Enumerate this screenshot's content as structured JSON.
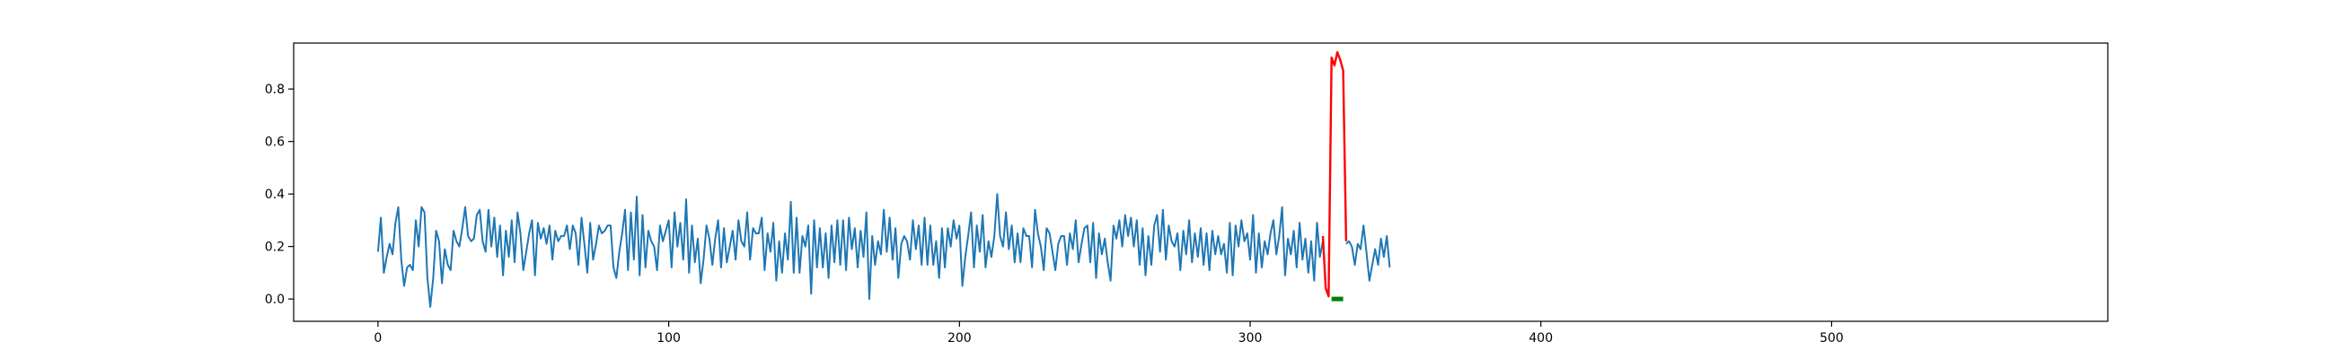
{
  "chart_data": {
    "type": "line",
    "title": "",
    "xlabel": "",
    "ylabel": "",
    "xlim": [
      -29,
      595
    ],
    "ylim": [
      -0.085,
      0.975
    ],
    "grid": false,
    "legend": "none",
    "xticks": [
      0,
      100,
      200,
      300,
      400,
      500
    ],
    "xtick_labels": [
      "0",
      "100",
      "200",
      "300",
      "400",
      "500"
    ],
    "yticks": [
      0.0,
      0.2,
      0.4,
      0.6,
      0.8
    ],
    "ytick_labels": [
      "0.0",
      "0.2",
      "0.4",
      "0.6",
      "0.8"
    ],
    "series": [
      {
        "role": "signal",
        "color": "#1f77b4",
        "x_start": 0,
        "values": [
          0.18,
          0.31,
          0.1,
          0.16,
          0.21,
          0.17,
          0.29,
          0.35,
          0.15,
          0.05,
          0.12,
          0.13,
          0.11,
          0.3,
          0.2,
          0.35,
          0.33,
          0.08,
          -0.03,
          0.08,
          0.26,
          0.22,
          0.06,
          0.19,
          0.13,
          0.11,
          0.26,
          0.22,
          0.2,
          0.27,
          0.35,
          0.24,
          0.22,
          0.23,
          0.32,
          0.34,
          0.22,
          0.18,
          0.34,
          0.2,
          0.31,
          0.16,
          0.28,
          0.09,
          0.26,
          0.16,
          0.3,
          0.14,
          0.33,
          0.25,
          0.11,
          0.18,
          0.25,
          0.3,
          0.09,
          0.29,
          0.23,
          0.27,
          0.21,
          0.28,
          0.15,
          0.26,
          0.22,
          0.24,
          0.24,
          0.28,
          0.19,
          0.28,
          0.25,
          0.13,
          0.31,
          0.21,
          0.1,
          0.29,
          0.15,
          0.21,
          0.28,
          0.25,
          0.26,
          0.28,
          0.28,
          0.12,
          0.08,
          0.18,
          0.25,
          0.34,
          0.11,
          0.33,
          0.15,
          0.39,
          0.09,
          0.32,
          0.12,
          0.26,
          0.22,
          0.2,
          0.11,
          0.28,
          0.22,
          0.26,
          0.3,
          0.12,
          0.33,
          0.2,
          0.29,
          0.15,
          0.38,
          0.1,
          0.28,
          0.14,
          0.23,
          0.06,
          0.15,
          0.28,
          0.23,
          0.13,
          0.23,
          0.3,
          0.12,
          0.27,
          0.14,
          0.2,
          0.26,
          0.15,
          0.3,
          0.22,
          0.2,
          0.33,
          0.15,
          0.27,
          0.25,
          0.25,
          0.31,
          0.11,
          0.25,
          0.18,
          0.29,
          0.07,
          0.22,
          0.1,
          0.25,
          0.15,
          0.37,
          0.1,
          0.31,
          0.1,
          0.24,
          0.2,
          0.28,
          0.02,
          0.3,
          0.12,
          0.27,
          0.12,
          0.25,
          0.08,
          0.28,
          0.14,
          0.3,
          0.13,
          0.3,
          0.11,
          0.31,
          0.19,
          0.27,
          0.12,
          0.26,
          0.16,
          0.33,
          0.0,
          0.24,
          0.13,
          0.22,
          0.17,
          0.34,
          0.18,
          0.31,
          0.15,
          0.27,
          0.08,
          0.21,
          0.24,
          0.22,
          0.15,
          0.3,
          0.19,
          0.28,
          0.13,
          0.31,
          0.13,
          0.28,
          0.13,
          0.22,
          0.08,
          0.27,
          0.12,
          0.27,
          0.2,
          0.3,
          0.23,
          0.28,
          0.05,
          0.16,
          0.24,
          0.33,
          0.12,
          0.28,
          0.18,
          0.32,
          0.12,
          0.22,
          0.16,
          0.24,
          0.4,
          0.24,
          0.2,
          0.33,
          0.19,
          0.28,
          0.14,
          0.25,
          0.14,
          0.27,
          0.24,
          0.24,
          0.12,
          0.34,
          0.25,
          0.2,
          0.11,
          0.27,
          0.25,
          0.18,
          0.11,
          0.21,
          0.24,
          0.24,
          0.13,
          0.25,
          0.19,
          0.3,
          0.14,
          0.21,
          0.27,
          0.28,
          0.14,
          0.29,
          0.08,
          0.25,
          0.17,
          0.23,
          0.14,
          0.07,
          0.28,
          0.23,
          0.3,
          0.2,
          0.32,
          0.24,
          0.31,
          0.2,
          0.3,
          0.13,
          0.27,
          0.09,
          0.24,
          0.13,
          0.28,
          0.32,
          0.18,
          0.34,
          0.15,
          0.28,
          0.22,
          0.2,
          0.25,
          0.11,
          0.26,
          0.17,
          0.3,
          0.14,
          0.25,
          0.16,
          0.27,
          0.13,
          0.25,
          0.11,
          0.26,
          0.17,
          0.24,
          0.17,
          0.21,
          0.1,
          0.29,
          0.09,
          0.28,
          0.2,
          0.3,
          0.22,
          0.25,
          0.15,
          0.32,
          0.1,
          0.25,
          0.12,
          0.22,
          0.17,
          0.25,
          0.3,
          0.17,
          0.24,
          0.35,
          0.09,
          0.23,
          0.17,
          0.26,
          0.12,
          0.29,
          0.15,
          0.23,
          0.1,
          0.22,
          0.07,
          0.29,
          0.16,
          0.22,
          0.18,
          0.27,
          0.17,
          0.25,
          0.13,
          0.24,
          0.16,
          0.21,
          0.22,
          0.2,
          0.13,
          0.21,
          0.19,
          0.28,
          0.18,
          0.07,
          0.13,
          0.19,
          0.13,
          0.23,
          0.16,
          0.24,
          0.12
        ],
        "anomaly_index_range": [
          325,
          333
        ]
      },
      {
        "role": "anomaly",
        "color": "#ff0000",
        "x": [
          325,
          326,
          327,
          328,
          329,
          330,
          331,
          332,
          333
        ],
        "values": [
          0.24,
          0.04,
          0.01,
          0.92,
          0.89,
          0.94,
          0.91,
          0.87,
          0.22
        ]
      },
      {
        "role": "marker",
        "color": "#008000",
        "x": [
          328,
          332
        ],
        "values": [
          0.0,
          0.0
        ]
      }
    ]
  }
}
